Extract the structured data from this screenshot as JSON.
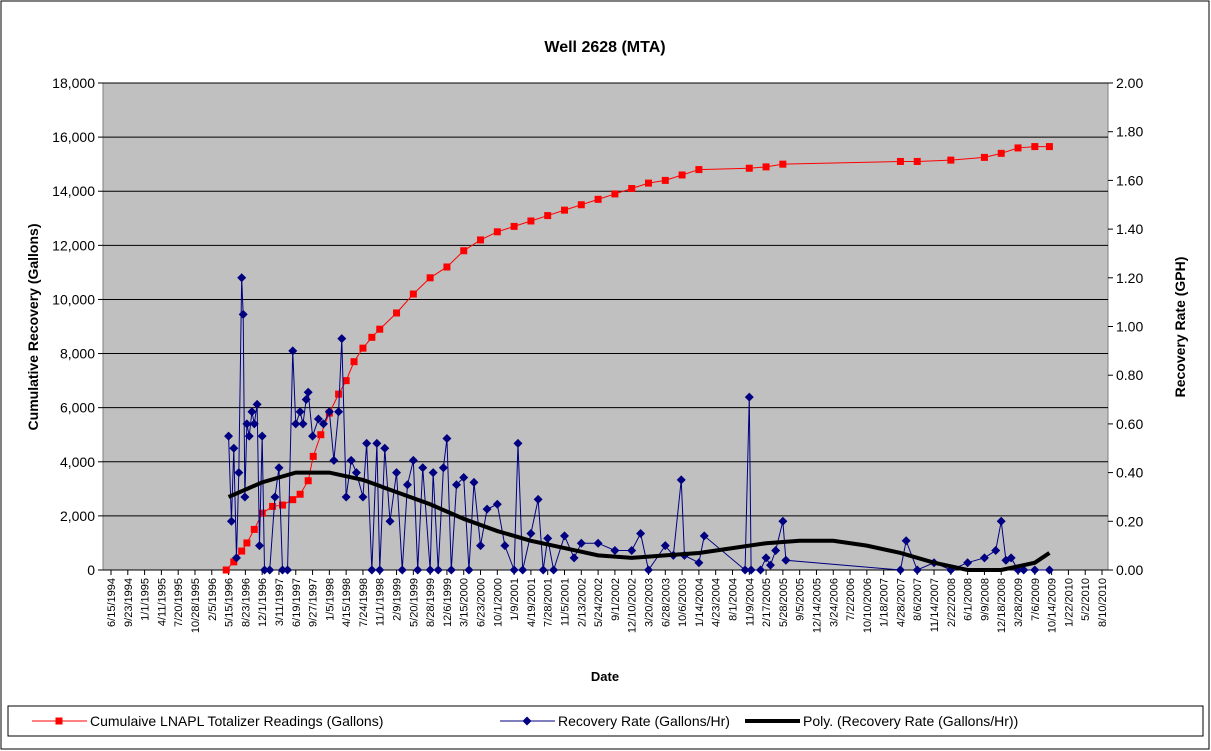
{
  "chart_data": {
    "type": "line",
    "title": "Well 2628 (MTA)",
    "xlabel": "Date",
    "ylabel": "Cumulative Recovery (Gallons)",
    "y2label": "Recovery Rate (GPH)",
    "xlim": [
      "6/15/1994",
      "8/10/2010"
    ],
    "xticks": [
      "6/15/1994",
      "9/23/1994",
      "1/1/1995",
      "4/11/1995",
      "7/20/1995",
      "10/28/1995",
      "2/5/1996",
      "5/15/1996",
      "8/23/1996",
      "12/1/1996",
      "3/11/1997",
      "6/19/1997",
      "9/27/1997",
      "1/5/1998",
      "4/15/1998",
      "7/24/1998",
      "11/1/1998",
      "2/9/1999",
      "5/20/1999",
      "8/28/1999",
      "12/6/1999",
      "3/15/2000",
      "6/23/2000",
      "10/1/2000",
      "1/9/2001",
      "4/19/2001",
      "7/28/2001",
      "11/5/2001",
      "2/13/2002",
      "5/24/2002",
      "9/1/2002",
      "12/10/2002",
      "3/20/2003",
      "6/28/2003",
      "10/6/2003",
      "1/14/2004",
      "4/23/2004",
      "8/1/2004",
      "11/9/2004",
      "2/17/2005",
      "5/28/2005",
      "9/5/2005",
      "12/14/2005",
      "3/24/2006",
      "7/2/2006",
      "10/10/2006",
      "1/18/2007",
      "4/28/2007",
      "8/6/2007",
      "11/14/2007",
      "2/22/2008",
      "6/1/2008",
      "9/9/2008",
      "12/18/2008",
      "3/28/2009",
      "7/6/2009",
      "10/14/2009",
      "1/22/2010",
      "5/2/2010",
      "8/10/2010"
    ],
    "ylim": [
      0,
      18000
    ],
    "yticks": [
      0,
      {
        "value": 2000,
        "label": "2,000"
      },
      {
        "value": 4000,
        "label": "4,000"
      },
      {
        "value": 6000,
        "label": "6,000"
      },
      {
        "value": 8000,
        "label": "8,000"
      },
      {
        "value": 10000,
        "label": "10,000"
      },
      {
        "value": 12000,
        "label": "12,000"
      },
      {
        "value": 14000,
        "label": "14,000"
      },
      {
        "value": 16000,
        "label": "16,000"
      },
      {
        "value": 18000,
        "label": "18,000"
      }
    ],
    "y2lim": [
      0,
      2
    ],
    "y2ticks": [
      {
        "value": 0,
        "label": "0.00"
      },
      {
        "value": 0.2,
        "label": "0.20"
      },
      {
        "value": 0.4,
        "label": "0.40"
      },
      {
        "value": 0.6,
        "label": "0.60"
      },
      {
        "value": 0.8,
        "label": "0.80"
      },
      {
        "value": 1,
        "label": "1.00"
      },
      {
        "value": 1.2,
        "label": "1.20"
      },
      {
        "value": 1.4,
        "label": "1.40"
      },
      {
        "value": 1.6,
        "label": "1.60"
      },
      {
        "value": 1.8,
        "label": "1.80"
      },
      {
        "value": 2,
        "label": "2.00"
      }
    ],
    "grid": true,
    "legend": "bottom",
    "series": [
      {
        "name": "Cumulaive LNAPL Totalizer Readings (Gallons)",
        "color": "#ff0000",
        "marker": "square",
        "axis": "y",
        "x": [
          "5/1/1996",
          "6/15/1996",
          "8/1/1996",
          "9/1/1996",
          "10/15/1996",
          "12/1/1996",
          "2/1/1997",
          "4/1/1997",
          "6/1/1997",
          "7/15/1997",
          "9/1/1997",
          "10/1/1997",
          "11/15/1997",
          "1/5/1998",
          "3/1/1998",
          "4/15/1998",
          "6/1/1998",
          "7/24/1998",
          "9/15/1998",
          "11/1/1998",
          "2/9/1999",
          "5/20/1999",
          "8/28/1999",
          "12/6/1999",
          "3/15/2000",
          "6/23/2000",
          "10/1/2000",
          "1/9/2001",
          "4/19/2001",
          "7/28/2001",
          "11/5/2001",
          "2/13/2002",
          "5/24/2002",
          "9/1/2002",
          "12/10/2002",
          "3/20/2003",
          "6/28/2003",
          "10/6/2003",
          "1/14/2004",
          "11/9/2004",
          "2/17/2005",
          "5/28/2005",
          "4/28/2007",
          "8/6/2007",
          "2/22/2008",
          "9/9/2008",
          "12/18/2008",
          "3/28/2009",
          "7/6/2009",
          "10/1/2009"
        ],
        "values": [
          0,
          300,
          700,
          1000,
          1500,
          2100,
          2350,
          2400,
          2600,
          2800,
          3300,
          4200,
          5000,
          5800,
          6500,
          7000,
          7700,
          8200,
          8600,
          8900,
          9500,
          10200,
          10800,
          11200,
          11800,
          12200,
          12500,
          12700,
          12900,
          13100,
          13300,
          13500,
          13700,
          13900,
          14100,
          14300,
          14400,
          14600,
          14800,
          14850,
          14900,
          15000,
          15100,
          15100,
          15150,
          15250,
          15400,
          15600,
          15650,
          15650
        ]
      },
      {
        "name": "Recovery Rate (Gallons/Hr)",
        "color": "#000080",
        "marker": "diamond",
        "axis": "y2",
        "x": [
          "5/15/1996",
          "6/1/1996",
          "6/15/1996",
          "7/1/1996",
          "7/15/1996",
          "8/1/1996",
          "8/10/1996",
          "8/20/1996",
          "9/1/1996",
          "9/15/1996",
          "10/1/1996",
          "10/15/1996",
          "11/1/1996",
          "11/15/1996",
          "12/1/1996",
          "12/15/1996",
          "1/15/1997",
          "2/15/1997",
          "3/11/1997",
          "4/1/1997",
          "5/1/1997",
          "6/1/1997",
          "6/19/1997",
          "7/15/1997",
          "8/1/1997",
          "8/20/1997",
          "9/1/1997",
          "9/27/1997",
          "11/1/1997",
          "12/1/1997",
          "1/5/1998",
          "2/1/1998",
          "3/1/1998",
          "3/20/1998",
          "4/15/1998",
          "5/15/1998",
          "6/15/1998",
          "7/24/1998",
          "8/15/1998",
          "9/15/1998",
          "10/15/1998",
          "11/1/1998",
          "12/1/1998",
          "1/1/1999",
          "2/9/1999",
          "3/15/1999",
          "4/15/1999",
          "5/20/1999",
          "6/15/1999",
          "7/15/1999",
          "8/28/1999",
          "9/15/1999",
          "10/15/1999",
          "11/15/1999",
          "12/6/1999",
          "1/1/2000",
          "2/1/2000",
          "3/15/2000",
          "4/15/2000",
          "5/15/2000",
          "6/23/2000",
          "8/1/2000",
          "10/1/2000",
          "11/15/2000",
          "1/9/2001",
          "2/1/2001",
          "3/1/2001",
          "4/19/2001",
          "6/1/2001",
          "7/1/2001",
          "7/28/2001",
          "9/1/2001",
          "11/5/2001",
          "1/1/2002",
          "2/13/2002",
          "5/24/2002",
          "9/1/2002",
          "12/10/2002",
          "2/1/2003",
          "3/20/2003",
          "6/28/2003",
          "8/15/2003",
          "10/1/2003",
          "10/20/2003",
          "1/14/2004",
          "2/15/2004",
          "10/15/2004",
          "11/9/2004",
          "11/20/2004",
          "1/15/2005",
          "2/17/2005",
          "3/15/2005",
          "4/15/2005",
          "5/28/2005",
          "6/15/2005",
          "4/28/2007",
          "6/1/2007",
          "8/6/2007",
          "11/14/2007",
          "2/22/2008",
          "6/1/2008",
          "9/9/2008",
          "11/15/2008",
          "12/18/2008",
          "1/15/2009",
          "2/15/2009",
          "3/28/2009",
          "5/1/2009",
          "7/6/2009",
          "10/1/2009"
        ],
        "values": [
          0.55,
          0.2,
          0.5,
          0.05,
          0.4,
          1.2,
          1.05,
          0.3,
          0.6,
          0.55,
          0.65,
          0.6,
          0.68,
          0.1,
          0.55,
          0,
          0,
          0.3,
          0.42,
          0,
          0,
          0.9,
          0.6,
          0.65,
          0.6,
          0.7,
          0.73,
          0.55,
          0.62,
          0.6,
          0.65,
          0.45,
          0.65,
          0.95,
          0.3,
          0.45,
          0.4,
          0.3,
          0.52,
          0,
          0.52,
          0,
          0.5,
          0.2,
          0.4,
          0,
          0.35,
          0.45,
          0,
          0.42,
          0,
          0.4,
          0,
          0.42,
          0.54,
          0,
          0.35,
          0.38,
          0,
          0.36,
          0.1,
          0.25,
          0.27,
          0.1,
          0,
          0.52,
          0,
          0.15,
          0.29,
          0,
          0.13,
          0,
          0.14,
          0.05,
          0.11,
          0.11,
          0.08,
          0.08,
          0.15,
          0,
          0.1,
          0.06,
          0.37,
          0.06,
          0.03,
          0.14,
          0,
          0.71,
          0,
          0,
          0.05,
          0.02,
          0.08,
          0.2,
          0.04,
          0,
          0.12,
          0,
          0.03,
          0,
          0.03,
          0.05,
          0.08,
          0.2,
          0.04,
          0.05,
          0,
          0,
          0,
          0
        ]
      },
      {
        "name": "Poly. (Recovery Rate (Gallons/Hr))",
        "color": "#000000",
        "marker": "none",
        "axis": "y2",
        "x": [
          "5/15/1996",
          "12/1/1996",
          "6/19/1997",
          "1/5/1998",
          "7/24/1998",
          "2/9/1999",
          "8/28/1999",
          "3/15/2000",
          "10/1/2000",
          "4/19/2001",
          "11/5/2001",
          "5/24/2002",
          "12/10/2002",
          "6/28/2003",
          "1/14/2004",
          "8/1/2004",
          "2/17/2005",
          "9/5/2005",
          "3/24/2006",
          "10/10/2006",
          "4/28/2007",
          "11/14/2007",
          "6/1/2008",
          "12/18/2008",
          "7/6/2009",
          "10/1/2009"
        ],
        "values": [
          0.3,
          0.36,
          0.4,
          0.4,
          0.37,
          0.32,
          0.27,
          0.21,
          0.16,
          0.12,
          0.09,
          0.06,
          0.05,
          0.06,
          0.07,
          0.09,
          0.11,
          0.12,
          0.12,
          0.1,
          0.07,
          0.03,
          0,
          0,
          0.03,
          0.07
        ]
      }
    ]
  }
}
